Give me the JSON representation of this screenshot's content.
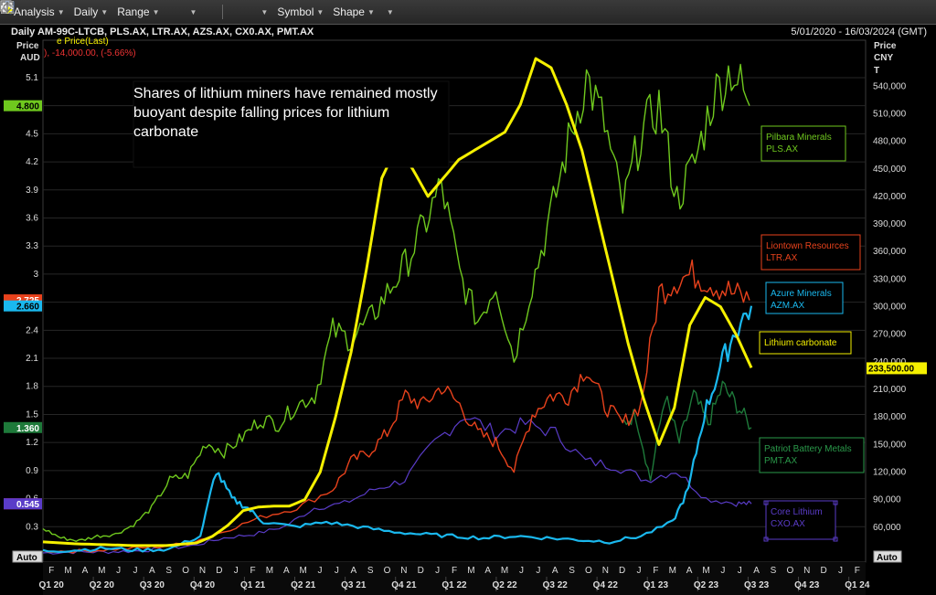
{
  "toolbar": {
    "analysis_label": "Analysis",
    "daily_label": "Daily",
    "range_label": "Range",
    "symbol_label": "Symbol",
    "shape_label": "Shape"
  },
  "header": {
    "title": "Daily AM-99C-LTCB, PLS.AX, LTR.AX, AZS.AX, CX0.AX, PMT.AX",
    "date_range": "5/01/2020 - 16/03/2024 (GMT)",
    "legend_line": "), -14,000.00, (-5.66%)",
    "legend_line_hidden": "e Price(Last)"
  },
  "annotation": {
    "text": "Shares of lithium miners have remained mostly buoyant despite falling prices for lithium carbonate"
  },
  "colors": {
    "pilbara": "#6fc81e",
    "liontown": "#e8421c",
    "azure": "#1ab8ee",
    "carbonate": "#f5f000",
    "patriot": "#1e7a3a",
    "core": "#5a3cc8",
    "background": "#000000",
    "grid": "#262626"
  },
  "chart_data": {
    "type": "line",
    "title": "Daily AM-99C-LTCB, PLS.AX, LTR.AX, AZS.AX, CX0.AX, PMT.AX",
    "left_axis": {
      "label": "Price",
      "unit": "AUD",
      "ticks": [
        "0.3",
        "0.6",
        "0.9",
        "1.2",
        "1.5",
        "1.8",
        "2.1",
        "2.4",
        "2.7",
        "3",
        "3.3",
        "3.6",
        "3.9",
        "4.2",
        "4.5",
        "4.8",
        "5.1"
      ],
      "range": [
        0,
        5.5
      ],
      "auto_label": "Auto"
    },
    "right_axis": {
      "label": "Price",
      "unit": "CNY",
      "unit2": "T",
      "ticks": [
        "60,000",
        "90,000",
        "120,000",
        "150,000",
        "180,000",
        "210,000",
        "240,000",
        "270,000",
        "300,000",
        "330,000",
        "360,000",
        "390,000",
        "420,000",
        "450,000",
        "480,000",
        "510,000",
        "540,000"
      ],
      "range": [
        30000,
        590000
      ],
      "auto_label": "Auto"
    },
    "x_axis": {
      "months": [
        "F",
        "M",
        "A",
        "M",
        "J",
        "J",
        "A",
        "S",
        "O",
        "N",
        "D",
        "J",
        "F",
        "M",
        "A",
        "M",
        "J",
        "J",
        "A",
        "S",
        "O",
        "N",
        "D",
        "J",
        "F",
        "M",
        "A",
        "M",
        "J",
        "J",
        "A",
        "S",
        "O",
        "N",
        "D",
        "J",
        "F",
        "M",
        "A",
        "M",
        "J",
        "J",
        "A",
        "S",
        "O",
        "N",
        "D",
        "J",
        "F"
      ],
      "quarters": [
        "Q1 20",
        "Q2 20",
        "Q3 20",
        "Q4 20",
        "Q1 21",
        "Q2 21",
        "Q3 21",
        "Q4 21",
        "Q1 22",
        "Q2 22",
        "Q3 22",
        "Q4 22",
        "Q1 23",
        "Q2 23",
        "Q3 23",
        "Q4 23",
        "Q1 24"
      ]
    },
    "last_value_tags": [
      {
        "axis": "left",
        "text": "4.800",
        "series": "pilbara"
      },
      {
        "axis": "left",
        "text": "2.725",
        "series": "liontown"
      },
      {
        "axis": "left",
        "text": "2.660",
        "series": "azure"
      },
      {
        "axis": "left",
        "text": "1.360",
        "series": "patriot"
      },
      {
        "axis": "left",
        "text": "0.545",
        "series": "core_pink"
      },
      {
        "axis": "left",
        "text": "0.545",
        "series": "core"
      },
      {
        "axis": "right",
        "text": "233,500.00",
        "series": "carbonate"
      }
    ],
    "series": [
      {
        "key": "pilbara",
        "name": "Pilbara Minerals",
        "ticker": "PLS.AX",
        "axis": "left",
        "points": [
          [
            0,
            0.28
          ],
          [
            1,
            0.18
          ],
          [
            2,
            0.15
          ],
          [
            3,
            0.2
          ],
          [
            4,
            0.22
          ],
          [
            5,
            0.32
          ],
          [
            6,
            0.5
          ],
          [
            7,
            0.8
          ],
          [
            8,
            0.85
          ],
          [
            9,
            1.2
          ],
          [
            10,
            1.1
          ],
          [
            11,
            1.25
          ],
          [
            12,
            1.45
          ],
          [
            13,
            1.4
          ],
          [
            14,
            1.6
          ],
          [
            15,
            1.7
          ],
          [
            16,
            2.4
          ],
          [
            17,
            2.3
          ],
          [
            18,
            2.5
          ],
          [
            19,
            2.8
          ],
          [
            20,
            3.1
          ],
          [
            21,
            3.5
          ],
          [
            22,
            3.95
          ],
          [
            23,
            3.0
          ],
          [
            24,
            2.5
          ],
          [
            25,
            2.9
          ],
          [
            26,
            2.1
          ],
          [
            27,
            2.9
          ],
          [
            28,
            3.6
          ],
          [
            29,
            4.4
          ],
          [
            30,
            5.1
          ],
          [
            31,
            4.6
          ],
          [
            32,
            3.7
          ],
          [
            33,
            4.5
          ],
          [
            34,
            4.8
          ],
          [
            35,
            3.8
          ],
          [
            36,
            4.2
          ],
          [
            37,
            4.9
          ],
          [
            38,
            5.2
          ],
          [
            39,
            4.8
          ]
        ],
        "label_x": 25.2
      },
      {
        "key": "liontown",
        "name": "Liontown Resources",
        "ticker": "LTR.AX",
        "axis": "left",
        "points": [
          [
            0,
            0.04
          ],
          [
            2,
            0.04
          ],
          [
            4,
            0.06
          ],
          [
            6,
            0.08
          ],
          [
            8,
            0.12
          ],
          [
            10,
            0.25
          ],
          [
            12,
            0.4
          ],
          [
            14,
            0.5
          ],
          [
            16,
            0.7
          ],
          [
            17,
            1.0
          ],
          [
            18,
            1.1
          ],
          [
            19,
            1.3
          ],
          [
            20,
            1.7
          ],
          [
            21,
            1.6
          ],
          [
            22,
            1.8
          ],
          [
            23,
            1.6
          ],
          [
            24,
            1.3
          ],
          [
            25,
            1.2
          ],
          [
            26,
            0.9
          ],
          [
            27,
            1.5
          ],
          [
            28,
            1.7
          ],
          [
            29,
            1.7
          ],
          [
            30,
            2.0
          ],
          [
            31,
            1.6
          ],
          [
            32,
            1.4
          ],
          [
            33,
            1.6
          ],
          [
            34,
            2.8
          ],
          [
            35,
            2.95
          ],
          [
            36,
            3.0
          ],
          [
            37,
            2.9
          ],
          [
            38,
            2.8
          ],
          [
            39,
            2.72
          ]
        ]
      },
      {
        "key": "carbonate",
        "name": "Lithium carbonate",
        "axis": "right",
        "points": [
          [
            0,
            44000
          ],
          [
            2,
            42000
          ],
          [
            4,
            41000
          ],
          [
            6,
            40000
          ],
          [
            8,
            40000
          ],
          [
            10,
            43000
          ],
          [
            11,
            50000
          ],
          [
            12,
            62000
          ],
          [
            13,
            78000
          ],
          [
            14,
            82000
          ],
          [
            15,
            83000
          ],
          [
            16,
            83000
          ],
          [
            17,
            90000
          ],
          [
            18,
            120000
          ],
          [
            19,
            180000
          ],
          [
            20,
            250000
          ],
          [
            21,
            340000
          ],
          [
            22,
            440000
          ],
          [
            23,
            475000
          ],
          [
            24,
            450000
          ],
          [
            25,
            420000
          ],
          [
            26,
            440000
          ],
          [
            27,
            460000
          ],
          [
            28,
            470000
          ],
          [
            29,
            480000
          ],
          [
            30,
            490000
          ],
          [
            31,
            520000
          ],
          [
            32,
            570000
          ],
          [
            33,
            560000
          ],
          [
            34,
            520000
          ],
          [
            35,
            470000
          ],
          [
            36,
            400000
          ],
          [
            37,
            330000
          ],
          [
            38,
            260000
          ],
          [
            39,
            200000
          ],
          [
            40,
            150000
          ],
          [
            41,
            190000
          ],
          [
            42,
            280000
          ],
          [
            43,
            310000
          ],
          [
            44,
            300000
          ],
          [
            45,
            270000
          ],
          [
            46,
            233500
          ]
        ]
      },
      {
        "key": "azure",
        "name": "Azure Minerals",
        "ticker": "AZM.AX",
        "axis": "left",
        "points": [
          [
            0,
            0.04
          ],
          [
            2,
            0.05
          ],
          [
            4,
            0.07
          ],
          [
            6,
            0.05
          ],
          [
            8,
            0.06
          ],
          [
            10,
            0.2
          ],
          [
            11,
            0.9
          ],
          [
            12,
            0.6
          ],
          [
            13,
            0.5
          ],
          [
            14,
            0.35
          ],
          [
            16,
            0.3
          ],
          [
            18,
            0.35
          ],
          [
            20,
            0.3
          ],
          [
            22,
            0.25
          ],
          [
            24,
            0.22
          ],
          [
            26,
            0.2
          ],
          [
            28,
            0.18
          ],
          [
            30,
            0.2
          ],
          [
            32,
            0.18
          ],
          [
            34,
            0.16
          ],
          [
            36,
            0.14
          ],
          [
            38,
            0.2
          ],
          [
            40,
            0.35
          ],
          [
            41,
            0.7
          ],
          [
            42,
            1.5
          ],
          [
            43,
            2.0
          ],
          [
            44,
            2.4
          ],
          [
            45,
            2.66
          ]
        ]
      },
      {
        "key": "patriot",
        "name": "Patriot Battery Metals",
        "ticker": "PMT.AX",
        "axis": "left",
        "points": [
          [
            0,
            1.4
          ],
          [
            1,
            1.5
          ],
          [
            2,
            0.8
          ],
          [
            3,
            1.7
          ],
          [
            4,
            1.2
          ],
          [
            5,
            1.7
          ],
          [
            6,
            1.4
          ],
          [
            7,
            1.8
          ],
          [
            8,
            1.6
          ],
          [
            9,
            1.36
          ]
        ]
      },
      {
        "key": "core",
        "name": "Core Lithium",
        "ticker": "CXO.AX",
        "axis": "left",
        "points": [
          [
            0,
            0.02
          ],
          [
            2,
            0.03
          ],
          [
            4,
            0.03
          ],
          [
            6,
            0.04
          ],
          [
            8,
            0.06
          ],
          [
            10,
            0.1
          ],
          [
            12,
            0.18
          ],
          [
            14,
            0.22
          ],
          [
            16,
            0.3
          ],
          [
            18,
            0.5
          ],
          [
            20,
            0.55
          ],
          [
            22,
            0.7
          ],
          [
            24,
            0.8
          ],
          [
            26,
            1.2
          ],
          [
            28,
            1.5
          ],
          [
            30,
            1.3
          ],
          [
            32,
            1.4
          ],
          [
            34,
            1.3
          ],
          [
            36,
            1.0
          ],
          [
            38,
            0.95
          ],
          [
            40,
            0.8
          ],
          [
            42,
            0.9
          ],
          [
            44,
            0.6
          ],
          [
            46,
            0.55
          ],
          [
            47,
            0.545
          ]
        ]
      }
    ]
  }
}
